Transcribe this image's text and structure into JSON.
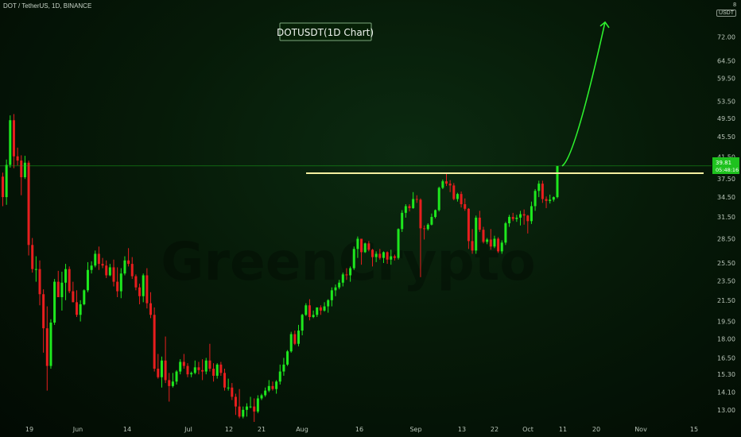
{
  "header": {
    "symbol": "DOT / TetherUS, 1D, BINANCE",
    "currency": "USDT",
    "currency_top": "8"
  },
  "watermark": "GreenCrypto",
  "price_tag": {
    "price": "39.81",
    "countdown": "05:48:16",
    "color": "#1ec21e"
  },
  "chart_data": {
    "type": "candlestick",
    "title": "DOTUSDT(1D Chart)",
    "y_scale": "log",
    "ylim": [
      12.3,
      84
    ],
    "y_ticks": [
      "72.00",
      "64.50",
      "59.50",
      "53.50",
      "49.50",
      "45.50",
      "41.50",
      "37.50",
      "34.50",
      "31.50",
      "28.50",
      "25.50",
      "23.50",
      "21.50",
      "19.50",
      "18.00",
      "16.50",
      "15.30",
      "14.10",
      "13.00"
    ],
    "x_ticks": [
      "19",
      "Jun",
      "14",
      "Jul",
      "12",
      "21",
      "Aug",
      "16",
      "Sep",
      "13",
      "22",
      "Oct",
      "11",
      "20",
      "Nov",
      "15"
    ],
    "colors": {
      "up": "#1ee81e",
      "down": "#e81e1e"
    },
    "resistance_line": {
      "price": 38.5,
      "color": "#f5f0a0"
    },
    "current_price_line": 39.81,
    "projection_arrow": {
      "from_price": 39.8,
      "to_price": 77,
      "color": "#2ef22e"
    },
    "candles": [
      [
        37.9,
        38.6,
        33.1,
        34.5
      ],
      [
        34.5,
        41,
        33.3,
        40
      ],
      [
        40,
        50.2,
        39.5,
        49.1
      ],
      [
        49.1,
        50.5,
        39.4,
        41.6
      ],
      [
        41.6,
        43.3,
        39.9,
        40.8
      ],
      [
        40.8,
        41.8,
        34.8,
        37.8
      ],
      [
        37.8,
        41.7,
        37.5,
        40.4
      ],
      [
        40.4,
        40.8,
        26.4,
        27.7
      ],
      [
        27.7,
        28.6,
        24.4,
        24.8
      ],
      [
        24.8,
        26.3,
        23.4,
        24.8
      ],
      [
        24.8,
        25.8,
        21,
        22.1
      ],
      [
        22.1,
        22.6,
        16.9,
        18.9
      ],
      [
        18.9,
        20.9,
        14.2,
        15.9
      ],
      [
        15.9,
        19.7,
        15.7,
        19.4
      ],
      [
        19.4,
        23.7,
        19.2,
        23.4
      ],
      [
        23.4,
        24.6,
        21.8,
        21.8
      ],
      [
        21.8,
        24.5,
        20.5,
        23.3
      ],
      [
        23.3,
        25.4,
        21.5,
        24.8
      ],
      [
        24.8,
        25.1,
        22.2,
        22.4
      ],
      [
        22.4,
        23.4,
        21.3,
        21.3
      ],
      [
        21.3,
        22.5,
        19.9,
        20.1
      ],
      [
        20.1,
        21.5,
        19.5,
        21.1
      ],
      [
        21.1,
        22.6,
        21,
        22.5
      ],
      [
        22.5,
        25.6,
        22.3,
        24.7
      ],
      [
        24.7,
        25.7,
        24.3,
        25.2
      ],
      [
        25.2,
        27,
        25,
        26.6
      ],
      [
        26.6,
        27.5,
        24.7,
        25.4
      ],
      [
        25.4,
        26.1,
        24.9,
        25.2
      ],
      [
        25.2,
        25.8,
        23.8,
        24.1
      ],
      [
        24.1,
        25.4,
        24,
        25
      ],
      [
        25,
        25.9,
        22.9,
        23.4
      ],
      [
        23.4,
        25,
        21.8,
        22.4
      ],
      [
        22.4,
        24.9,
        21.7,
        24.3
      ],
      [
        24.3,
        26.3,
        24.1,
        25.8
      ],
      [
        25.8,
        27.3,
        25.1,
        25.4
      ],
      [
        25.4,
        26.2,
        23.7,
        24
      ],
      [
        24,
        24.2,
        22.5,
        22.8
      ],
      [
        22.8,
        23.2,
        21.1,
        21.9
      ],
      [
        21.9,
        24.3,
        21.3,
        24.1
      ],
      [
        24.1,
        24.9,
        20.7,
        21.2
      ],
      [
        21.2,
        22.3,
        19.8,
        20.1
      ],
      [
        20.1,
        20.8,
        15.5,
        15.7
      ],
      [
        15.7,
        16.8,
        15,
        15.1
      ],
      [
        15.1,
        16.6,
        14.4,
        16.3
      ],
      [
        16.3,
        18.2,
        14.7,
        14.9
      ],
      [
        14.9,
        15.4,
        13.5,
        14.5
      ],
      [
        14.5,
        15.4,
        14.4,
        14.8
      ],
      [
        14.8,
        15.6,
        14.6,
        15.5
      ],
      [
        15.5,
        16.4,
        15.3,
        16.2
      ],
      [
        16.2,
        16.8,
        15.7,
        15.9
      ],
      [
        15.9,
        16.1,
        15.1,
        15.3
      ],
      [
        15.3,
        15.5,
        15.1,
        15.4
      ],
      [
        15.4,
        16.3,
        15.3,
        15.8
      ],
      [
        15.8,
        16.2,
        15.3,
        15.6
      ],
      [
        15.6,
        16.4,
        14.9,
        15.5
      ],
      [
        15.5,
        16.5,
        15.3,
        16.3
      ],
      [
        16.3,
        17.6,
        15.5,
        15.7
      ],
      [
        15.7,
        16.1,
        14.8,
        15.2
      ],
      [
        15.2,
        16.1,
        15,
        16
      ],
      [
        16,
        16.2,
        15.2,
        15.4
      ],
      [
        15.4,
        15.7,
        14.2,
        14.4
      ],
      [
        14.4,
        15,
        14.2,
        14.4
      ],
      [
        14.4,
        14.7,
        13.6,
        13.8
      ],
      [
        13.8,
        14,
        12.7,
        13.2
      ],
      [
        13.2,
        14.3,
        12.5,
        12.6
      ],
      [
        12.6,
        13.2,
        12.5,
        13
      ],
      [
        13,
        13.4,
        12.6,
        13.2
      ],
      [
        13.2,
        13.8,
        13.1,
        13.2
      ],
      [
        13.2,
        13.7,
        12.3,
        12.9
      ],
      [
        12.9,
        13.9,
        12.8,
        13.7
      ],
      [
        13.7,
        14,
        13.6,
        13.9
      ],
      [
        13.9,
        14.4,
        13.8,
        14.2
      ],
      [
        14.2,
        14.9,
        14.1,
        14.5
      ],
      [
        14.5,
        14.8,
        14.2,
        14.3
      ],
      [
        14.3,
        14.9,
        14,
        14.8
      ],
      [
        14.8,
        16,
        14.6,
        15.5
      ],
      [
        15.5,
        16.5,
        15.2,
        16
      ],
      [
        16,
        17.1,
        15.9,
        17
      ],
      [
        17,
        18.6,
        16.9,
        18.4
      ],
      [
        18.4,
        18.7,
        17.5,
        17.6
      ],
      [
        17.6,
        19.2,
        17.4,
        18.7
      ],
      [
        18.7,
        20.2,
        18.3,
        20.1
      ],
      [
        20.1,
        21.2,
        20,
        21
      ],
      [
        21,
        21.6,
        19.6,
        19.9
      ],
      [
        19.9,
        20.5,
        19.8,
        20.1
      ],
      [
        20.1,
        20.8,
        19.9,
        20.8
      ],
      [
        20.8,
        21,
        20.1,
        20.5
      ],
      [
        20.5,
        21.3,
        20.4,
        20.9
      ],
      [
        20.9,
        21.6,
        20.3,
        21.5
      ],
      [
        21.5,
        22.8,
        20.9,
        22.5
      ],
      [
        22.5,
        23.1,
        21.9,
        22.8
      ],
      [
        22.8,
        23.6,
        22.6,
        23.3
      ],
      [
        23.3,
        24.4,
        22.9,
        24.2
      ],
      [
        24.2,
        24.9,
        23.6,
        24.1
      ],
      [
        24.1,
        25.1,
        23.4,
        24.9
      ],
      [
        24.9,
        27.5,
        24.7,
        27.2
      ],
      [
        27.2,
        28.8,
        26.1,
        28.5
      ],
      [
        28.5,
        28.5,
        25.3,
        26.8
      ],
      [
        26.8,
        28,
        26.7,
        27.9
      ],
      [
        27.9,
        28.2,
        26.9,
        27.1
      ],
      [
        27.1,
        27.2,
        25.1,
        26.2
      ],
      [
        26.2,
        26.9,
        25.6,
        26.6
      ],
      [
        26.6,
        27.2,
        25.9,
        26.1
      ],
      [
        26.1,
        26.9,
        25.5,
        26.8
      ],
      [
        26.8,
        26.9,
        25.4,
        25.9
      ],
      [
        25.9,
        27.1,
        25.3,
        26.3
      ],
      [
        26.3,
        26.5,
        25.8,
        26.1
      ],
      [
        26.1,
        29.9,
        25.9,
        29.8
      ],
      [
        29.8,
        32.5,
        29.4,
        32.1
      ],
      [
        32.1,
        33.4,
        31.4,
        33.1
      ],
      [
        33.1,
        33.4,
        32.3,
        32.8
      ],
      [
        32.8,
        35.3,
        32.7,
        34.2
      ],
      [
        34.2,
        34.8,
        33.6,
        34.1
      ],
      [
        34.1,
        34.3,
        23.9,
        29.9
      ],
      [
        29.9,
        30.3,
        28.4,
        29.8
      ],
      [
        29.8,
        30.6,
        29.6,
        30.4
      ],
      [
        30.4,
        32,
        30.3,
        31.5
      ],
      [
        31.5,
        32.6,
        31.3,
        32.5
      ],
      [
        32.5,
        36.2,
        32.3,
        36
      ],
      [
        36,
        37.4,
        35.8,
        37.1
      ],
      [
        37.1,
        38.6,
        36.3,
        36.7
      ],
      [
        36.7,
        37.3,
        35.3,
        36.4
      ],
      [
        36.4,
        36.8,
        34,
        34.2
      ],
      [
        34.2,
        35.2,
        33.8,
        35
      ],
      [
        35,
        35.4,
        32.9,
        33.4
      ],
      [
        33.4,
        34.3,
        32.4,
        32.7
      ],
      [
        32.7,
        32.8,
        27.2,
        28.2
      ],
      [
        28.2,
        29.8,
        26.6,
        27
      ],
      [
        27,
        31.7,
        26.6,
        31.4
      ],
      [
        31.4,
        32.4,
        29.4,
        29.7
      ],
      [
        29.7,
        30.1,
        27.9,
        28.1
      ],
      [
        28.1,
        28.6,
        27.8,
        28.4
      ],
      [
        28.4,
        29.8,
        27.1,
        27.5
      ],
      [
        27.5,
        28.9,
        27.3,
        28.5
      ],
      [
        28.5,
        28.7,
        26.7,
        26.9
      ],
      [
        26.9,
        28.3,
        26.6,
        28
      ],
      [
        28,
        30.8,
        27.7,
        30.6
      ],
      [
        30.6,
        31.8,
        30.1,
        31.5
      ],
      [
        31.5,
        32.1,
        30.9,
        31.2
      ],
      [
        31.2,
        31.8,
        30.8,
        31.4
      ],
      [
        31.4,
        32.4,
        30.3,
        31.9
      ],
      [
        31.9,
        32.6,
        30.4,
        31.7
      ],
      [
        31.7,
        31.8,
        29.2,
        30.9
      ],
      [
        30.9,
        33.8,
        30.5,
        33.1
      ],
      [
        33.1,
        35.8,
        32.4,
        35.5
      ],
      [
        35.5,
        37.2,
        34.5,
        36.7
      ],
      [
        36.7,
        37.2,
        33.6,
        34.2
      ],
      [
        34.2,
        34.6,
        32.8,
        33.9
      ],
      [
        33.9,
        34.9,
        33.5,
        34.1
      ],
      [
        34.1,
        34.6,
        33.8,
        34.5
      ],
      [
        34.5,
        39.8,
        34.3,
        39.8
      ]
    ]
  }
}
